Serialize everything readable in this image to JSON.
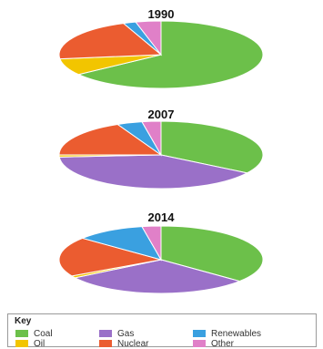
{
  "chart_data": [
    {
      "type": "pie",
      "title": "1990",
      "slices": [
        {
          "label": "Coal",
          "value": 65
        },
        {
          "label": "Gas",
          "value": 0
        },
        {
          "label": "Oil",
          "value": 8
        },
        {
          "label": "Nuclear",
          "value": 21
        },
        {
          "label": "Renewables",
          "value": 2
        },
        {
          "label": "Other",
          "value": 4
        }
      ]
    },
    {
      "type": "pie",
      "title": "2007",
      "slices": [
        {
          "label": "Coal",
          "value": 34
        },
        {
          "label": "Gas",
          "value": 40
        },
        {
          "label": "Oil",
          "value": 1
        },
        {
          "label": "Nuclear",
          "value": 18
        },
        {
          "label": "Renewables",
          "value": 4
        },
        {
          "label": "Other",
          "value": 3
        }
      ]
    },
    {
      "type": "pie",
      "title": "2014",
      "slices": [
        {
          "label": "Coal",
          "value": 36
        },
        {
          "label": "Gas",
          "value": 30
        },
        {
          "label": "Oil",
          "value": 1
        },
        {
          "label": "Nuclear",
          "value": 19
        },
        {
          "label": "Renewables",
          "value": 11
        },
        {
          "label": "Other",
          "value": 3
        }
      ]
    }
  ],
  "legend": {
    "title": "Key",
    "placement": "bottom",
    "items": [
      {
        "label": "Coal",
        "color": "#6cc04a"
      },
      {
        "label": "Gas",
        "color": "#9a70c8"
      },
      {
        "label": "Renewables",
        "color": "#3aa0e0"
      },
      {
        "label": "Oil",
        "color": "#f2c500"
      },
      {
        "label": "Nuclear",
        "color": "#eb5c30"
      },
      {
        "label": "Other",
        "color": "#e080c8"
      }
    ]
  },
  "colors": {
    "Coal": "#6cc04a",
    "Gas": "#9a70c8",
    "Oil": "#f2c500",
    "Nuclear": "#eb5c30",
    "Renewables": "#3aa0e0",
    "Other": "#e080c8"
  }
}
